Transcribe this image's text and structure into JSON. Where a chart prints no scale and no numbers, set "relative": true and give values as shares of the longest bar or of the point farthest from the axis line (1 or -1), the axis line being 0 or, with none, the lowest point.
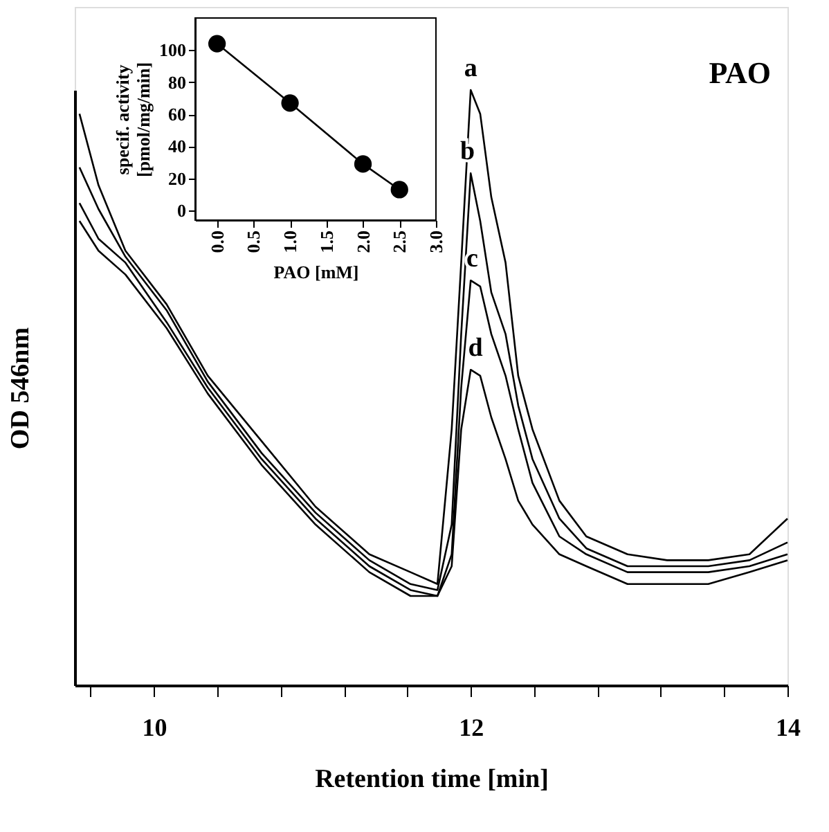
{
  "chart_data": [
    {
      "type": "line",
      "relative": true,
      "xlabel": "Retention time [min]",
      "ylabel": "OD 546nm",
      "xlim": [
        9.5,
        14
      ],
      "xticks": [
        {
          "value": 9.6,
          "label": null
        },
        10,
        {
          "value": 10.4,
          "label": null
        },
        {
          "value": 10.8,
          "label": null
        },
        {
          "value": 11.2,
          "label": null
        },
        {
          "value": 11.6,
          "label": null
        },
        12,
        {
          "value": 12.4,
          "label": null
        },
        {
          "value": 12.8,
          "label": null
        },
        {
          "value": 13.2,
          "label": null
        },
        {
          "value": 13.6,
          "label": null
        },
        14
      ],
      "grid": false,
      "legend": false,
      "marker": "none",
      "line_style": "solid",
      "x": [
        9.53,
        9.65,
        9.82,
        10.08,
        10.34,
        10.68,
        11.02,
        11.36,
        11.62,
        11.79,
        11.88,
        11.94,
        12.0,
        12.06,
        12.13,
        12.22,
        12.3,
        12.39,
        12.56,
        12.73,
        12.99,
        13.24,
        13.5,
        13.76,
        14.0
      ],
      "series": [
        {
          "color": "#000000",
          "values": [
            0.96,
            0.84,
            0.73,
            0.64,
            0.52,
            0.41,
            0.3,
            0.22,
            0.19,
            0.17,
            0.43,
            0.71,
            1.0,
            0.96,
            0.82,
            0.71,
            0.52,
            0.43,
            0.31,
            0.25,
            0.22,
            0.21,
            0.21,
            0.22,
            0.28
          ]
        },
        {
          "color": "#000000",
          "values": [
            0.87,
            0.8,
            0.72,
            0.63,
            0.51,
            0.39,
            0.29,
            0.21,
            0.17,
            0.16,
            0.27,
            0.59,
            0.86,
            0.78,
            0.66,
            0.59,
            0.47,
            0.38,
            0.28,
            0.23,
            0.2,
            0.2,
            0.2,
            0.21,
            0.24
          ]
        },
        {
          "color": "#000000",
          "values": [
            0.81,
            0.75,
            0.71,
            0.61,
            0.5,
            0.38,
            0.28,
            0.2,
            0.16,
            0.15,
            0.22,
            0.5,
            0.68,
            0.67,
            0.59,
            0.52,
            0.43,
            0.34,
            0.25,
            0.22,
            0.19,
            0.19,
            0.19,
            0.2,
            0.22
          ]
        },
        {
          "color": "#000000",
          "values": [
            0.78,
            0.73,
            0.69,
            0.6,
            0.49,
            0.37,
            0.27,
            0.19,
            0.15,
            0.15,
            0.2,
            0.43,
            0.53,
            0.52,
            0.45,
            0.38,
            0.31,
            0.27,
            0.22,
            0.2,
            0.17,
            0.17,
            0.17,
            0.19,
            0.21
          ]
        }
      ],
      "annotations": [
        "PAO",
        {
          "text": "a",
          "x": 12.0,
          "y": 1.0
        },
        {
          "text": "b",
          "x": 11.98,
          "y": 0.86
        },
        {
          "text": "c",
          "x": 12.01,
          "y": 0.68
        },
        {
          "text": "d",
          "x": 12.03,
          "y": 0.53
        }
      ]
    },
    {
      "type": "line",
      "xlabel": "PAO [mM]",
      "ylabel": "specif. activity [pmol/mg/min]",
      "xlim": [
        -0.3,
        3.0
      ],
      "ylim": [
        -6,
        120
      ],
      "xticks": [
        {
          "value": 0,
          "label": "0.0"
        },
        {
          "value": 0.5,
          "label": "0.5"
        },
        {
          "value": 1,
          "label": "1.0"
        },
        {
          "value": 1.5,
          "label": "1.5"
        },
        {
          "value": 2,
          "label": "2.0"
        },
        {
          "value": 2.5,
          "label": "2.5"
        },
        {
          "value": 3,
          "label": "3.0"
        }
      ],
      "yticks": [
        0,
        20,
        40,
        60,
        80,
        100
      ],
      "grid": false,
      "legend": false,
      "marker": "circle",
      "line_style": "solid",
      "x": [
        0,
        1,
        2,
        2.5
      ],
      "series": [
        {
          "color": "#000000",
          "values": [
            104,
            67,
            29,
            13
          ]
        }
      ]
    }
  ]
}
